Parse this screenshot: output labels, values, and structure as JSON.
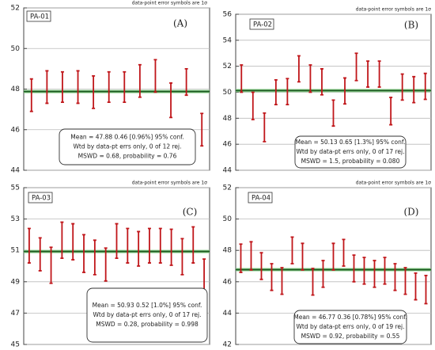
{
  "chart_data": [
    {
      "type": "errorbar",
      "label": "PA-01",
      "tag": "(A)",
      "note": "data-point error symbols are 1σ",
      "values": [
        47.7,
        48.1,
        48.1,
        48.1,
        47.85,
        48.1,
        48.1,
        48.4,
        48.65,
        47.45,
        48.35,
        46.0
      ],
      "errors": [
        0.8,
        0.8,
        0.75,
        0.8,
        0.8,
        0.75,
        0.75,
        0.8,
        0.8,
        0.85,
        0.65,
        0.8
      ],
      "mean": 47.88,
      "color": "#c0161a",
      "mean_color": "#1d5a22",
      "ylim": [
        44,
        52
      ],
      "yticks": [
        44,
        46,
        48,
        50,
        52
      ],
      "grid": true,
      "box": [
        "Mean = 47.88  0.46  [0.96%]  95% conf.",
        "Wtd by data-pt errs only, 0 of 12 rej.",
        "MSWD = 0.68, probability = 0.76"
      ]
    },
    {
      "type": "errorbar",
      "label": "PA-02",
      "tag": "(B)",
      "note": "data-point error symbols are 1σ",
      "values": [
        51.05,
        48.95,
        47.3,
        50.0,
        50.05,
        51.8,
        51.05,
        50.8,
        48.4,
        50.1,
        51.95,
        51.4,
        51.4,
        48.55,
        50.4,
        50.2,
        50.45
      ],
      "errors": [
        1.05,
        1.05,
        1.1,
        0.95,
        1.0,
        1.0,
        1.05,
        1.0,
        1.0,
        1.0,
        1.05,
        1.0,
        1.0,
        1.05,
        1.0,
        1.0,
        1.0
      ],
      "mean": 50.13,
      "color": "#c0161a",
      "mean_color": "#1d5a22",
      "ylim": [
        44,
        56
      ],
      "yticks": [
        44,
        46,
        48,
        50,
        52,
        54,
        56
      ],
      "grid": true,
      "box": [
        "Mean = 50.13  0.65  [1.3%]  95% conf.",
        "Wtd by data-pt errs only, 0 of 17 rej.",
        "MSWD = 1.5, probability = 0.080"
      ]
    },
    {
      "type": "errorbar",
      "label": "PA-03",
      "tag": "(C)",
      "note": "data-point error symbols are 1σ",
      "values": [
        51.3,
        50.75,
        50.05,
        51.65,
        51.55,
        50.8,
        50.55,
        50.1,
        51.6,
        51.3,
        51.1,
        51.3,
        51.3,
        51.2,
        50.6,
        51.35,
        49.4
      ],
      "errors": [
        1.1,
        1.05,
        1.15,
        1.15,
        1.15,
        1.2,
        1.1,
        1.05,
        1.1,
        1.1,
        1.1,
        1.1,
        1.1,
        1.15,
        1.15,
        1.15,
        1.05
      ],
      "mean": 50.93,
      "color": "#c0161a",
      "mean_color": "#1d5a22",
      "ylim": [
        45,
        55
      ],
      "yticks": [
        45,
        47,
        49,
        51,
        53,
        55
      ],
      "grid": true,
      "box": [
        "Mean = 50.93  0.52  [1.0%]  95% conf.",
        "Wtd by data-pt errs only, 0 of 17 rej.",
        "MSWD = 0.28, probability = 0.998"
      ]
    },
    {
      "type": "errorbar",
      "label": "PA-04",
      "tag": "(D)",
      "note": "data-point error symbols are 1σ",
      "values": [
        47.5,
        47.65,
        47.0,
        46.3,
        46.05,
        48.0,
        47.6,
        46.0,
        46.5,
        47.6,
        47.85,
        46.85,
        46.7,
        46.5,
        46.7,
        46.3,
        46.05,
        45.7,
        45.5
      ],
      "errors": [
        0.9,
        0.9,
        0.85,
        0.85,
        0.85,
        0.85,
        0.85,
        0.85,
        0.85,
        0.85,
        0.85,
        0.85,
        0.85,
        0.85,
        0.85,
        0.85,
        0.85,
        0.85,
        0.9
      ],
      "mean": 46.77,
      "color": "#c0161a",
      "mean_color": "#1d5a22",
      "ylim": [
        42,
        52
      ],
      "yticks": [
        42,
        44,
        46,
        48,
        50,
        52
      ],
      "grid": true,
      "box": [
        "Mean = 46.77  0.36  [0.78%]  95% conf.",
        "Wtd by data-pt errs only, 0 of 19 rej.",
        "MSWD = 0.92, probability = 0.55"
      ]
    }
  ]
}
